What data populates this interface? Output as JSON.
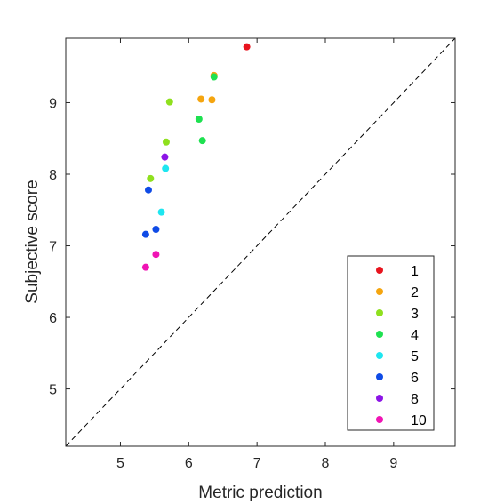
{
  "chart_data": {
    "type": "scatter",
    "title": "",
    "xlabel": "Metric prediction",
    "ylabel": "Subjective score",
    "xlim": [
      4.2,
      9.9
    ],
    "ylim": [
      4.2,
      9.9
    ],
    "xticks": [
      5,
      6,
      7,
      8,
      9
    ],
    "yticks": [
      5,
      6,
      7,
      8,
      9
    ],
    "grid": false,
    "reference_line": {
      "style": "dashed",
      "from": [
        4.2,
        4.2
      ],
      "to": [
        9.9,
        9.9
      ]
    },
    "legend_position": "bottom-right",
    "series": [
      {
        "name": "1",
        "color": "#e8141e",
        "points": [
          [
            6.85,
            9.78
          ]
        ]
      },
      {
        "name": "2",
        "color": "#f5a50f",
        "points": [
          [
            6.37,
            9.38
          ],
          [
            6.18,
            9.05
          ],
          [
            6.34,
            9.04
          ]
        ]
      },
      {
        "name": "3",
        "color": "#8fe01e",
        "points": [
          [
            5.72,
            9.01
          ],
          [
            5.67,
            8.45
          ],
          [
            5.44,
            7.94
          ]
        ]
      },
      {
        "name": "4",
        "color": "#1ee150",
        "points": [
          [
            6.37,
            9.36
          ],
          [
            6.15,
            8.77
          ],
          [
            6.2,
            8.47
          ]
        ]
      },
      {
        "name": "5",
        "color": "#1ee6f0",
        "points": [
          [
            5.66,
            8.08
          ],
          [
            5.6,
            7.47
          ]
        ]
      },
      {
        "name": "6",
        "color": "#0f4be6",
        "points": [
          [
            5.41,
            7.78
          ],
          [
            5.52,
            7.23
          ],
          [
            5.37,
            7.16
          ]
        ]
      },
      {
        "name": "8",
        "color": "#8c14e6",
        "points": [
          [
            5.65,
            8.24
          ]
        ]
      },
      {
        "name": "10",
        "color": "#f014b4",
        "points": [
          [
            5.52,
            6.88
          ],
          [
            5.37,
            6.7
          ]
        ]
      }
    ]
  }
}
